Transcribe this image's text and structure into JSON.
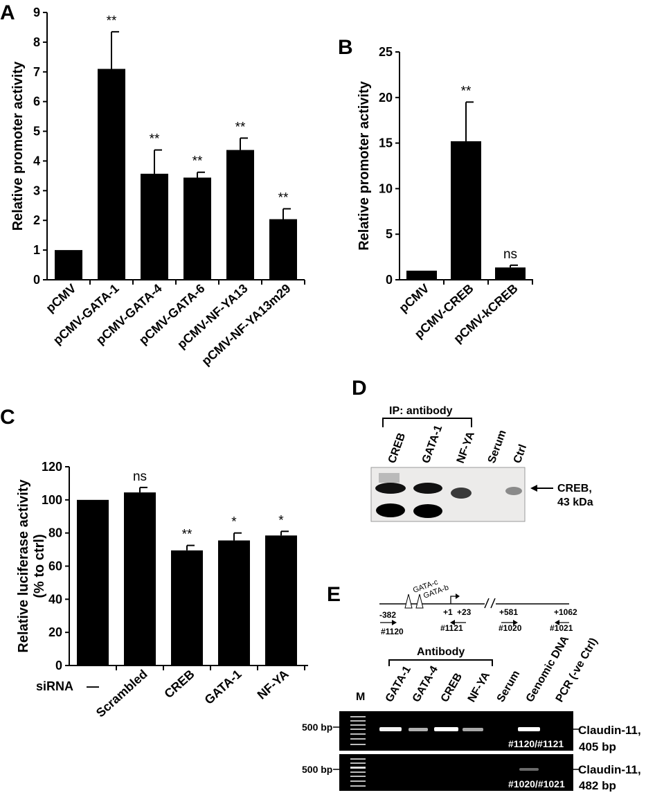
{
  "panels": {
    "A": "A",
    "B": "B",
    "C": "C",
    "D": "D",
    "E": "E"
  },
  "chart_data": [
    {
      "id": "A",
      "type": "bar",
      "ylabel": "Relative promoter activity",
      "ylim": [
        0,
        9
      ],
      "yticks": [
        0,
        1,
        2,
        3,
        4,
        5,
        6,
        7,
        8,
        9
      ],
      "categories": [
        "pCMV",
        "pCMV-GATA-1",
        "pCMV-GATA-4",
        "pCMV-GATA-6",
        "pCMV-NF-YA13",
        "pCMV-NF-YA13m29"
      ],
      "values": [
        1.0,
        7.1,
        3.57,
        3.44,
        4.37,
        2.04
      ],
      "errors": [
        0,
        1.25,
        0.8,
        0.18,
        0.4,
        0.35
      ],
      "significance": [
        "",
        "**",
        "**",
        "**",
        "**",
        "**"
      ],
      "bar_color": "#000000"
    },
    {
      "id": "B",
      "type": "bar",
      "ylabel": "Relative promoter activity",
      "ylim": [
        0,
        25
      ],
      "yticks": [
        0,
        5,
        10,
        15,
        20,
        25
      ],
      "categories": [
        "pCMV",
        "pCMV-CREB",
        "pCMV-kCREB"
      ],
      "values": [
        1.0,
        15.2,
        1.35
      ],
      "errors": [
        0,
        4.3,
        0.25
      ],
      "significance": [
        "",
        "**",
        "ns"
      ],
      "bar_color": "#000000"
    },
    {
      "id": "C",
      "type": "bar",
      "ylabel": "Relative luciferase activity",
      "ylabel2": "(% to ctrl)",
      "ylim": [
        0,
        120
      ],
      "yticks": [
        0,
        20,
        40,
        60,
        80,
        100,
        120
      ],
      "row_label": "siRNA",
      "categories": [
        "—",
        "Scrambled",
        "CREB",
        "GATA-1",
        "NF-YA"
      ],
      "values": [
        100,
        104.5,
        69.5,
        75.5,
        78.5
      ],
      "errors": [
        0,
        3,
        3,
        4.5,
        2.5
      ],
      "significance": [
        "",
        "ns",
        "**",
        "*",
        "*"
      ],
      "bar_color": "#000000"
    }
  ],
  "panel_d": {
    "ip_label": "IP: antibody",
    "lanes": [
      "CREB",
      "GATA-1",
      "NF-YA",
      "Serum",
      "Ctrl"
    ],
    "band_label_1": "CREB,",
    "band_label_2": "43 kDa"
  },
  "panel_e": {
    "sites": [
      "GATA-c",
      "GATA-b"
    ],
    "positions": [
      "-382",
      "+1",
      "+23",
      "+581",
      "+1062"
    ],
    "primers": [
      "#1120",
      "#1121",
      "#1020",
      "#1021"
    ],
    "antibody_label": "Antibody",
    "marker_label": "M",
    "lanes": [
      "GATA-1",
      "GATA-4",
      "CREB",
      "NF-YA",
      "Serum",
      "Genomic DNA",
      "PCR (-ve Ctrl)"
    ],
    "size_marker": "500 bp",
    "gel1_primers": "#1120/#1121",
    "gel2_primers": "#1020/#1021",
    "product1_name": "Claudin-11,",
    "product1_size": "405 bp",
    "product2_name": "Claudin-11,",
    "product2_size": "482 bp"
  }
}
